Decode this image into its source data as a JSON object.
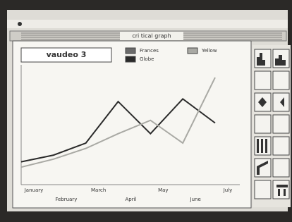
{
  "window": {
    "title": "cri tical graph"
  },
  "chart_data": {
    "type": "line",
    "title": "vaudeo 3",
    "categories": [
      "January",
      "February",
      "March",
      "April",
      "May",
      "June",
      "July"
    ],
    "series": [
      {
        "name": "Frances",
        "color": "#6a6a6a",
        "values": [
          null,
          null,
          null,
          null,
          null,
          null,
          null
        ]
      },
      {
        "name": "Globe",
        "color": "#2a2a2a",
        "values": [
          16,
          21,
          30,
          61,
          37,
          63,
          45
        ]
      },
      {
        "name": "Yellow",
        "color": "#a9a9a4",
        "values": [
          12,
          18,
          26,
          37,
          47,
          30,
          79
        ]
      }
    ],
    "ylim": [
      0,
      100
    ]
  }
}
